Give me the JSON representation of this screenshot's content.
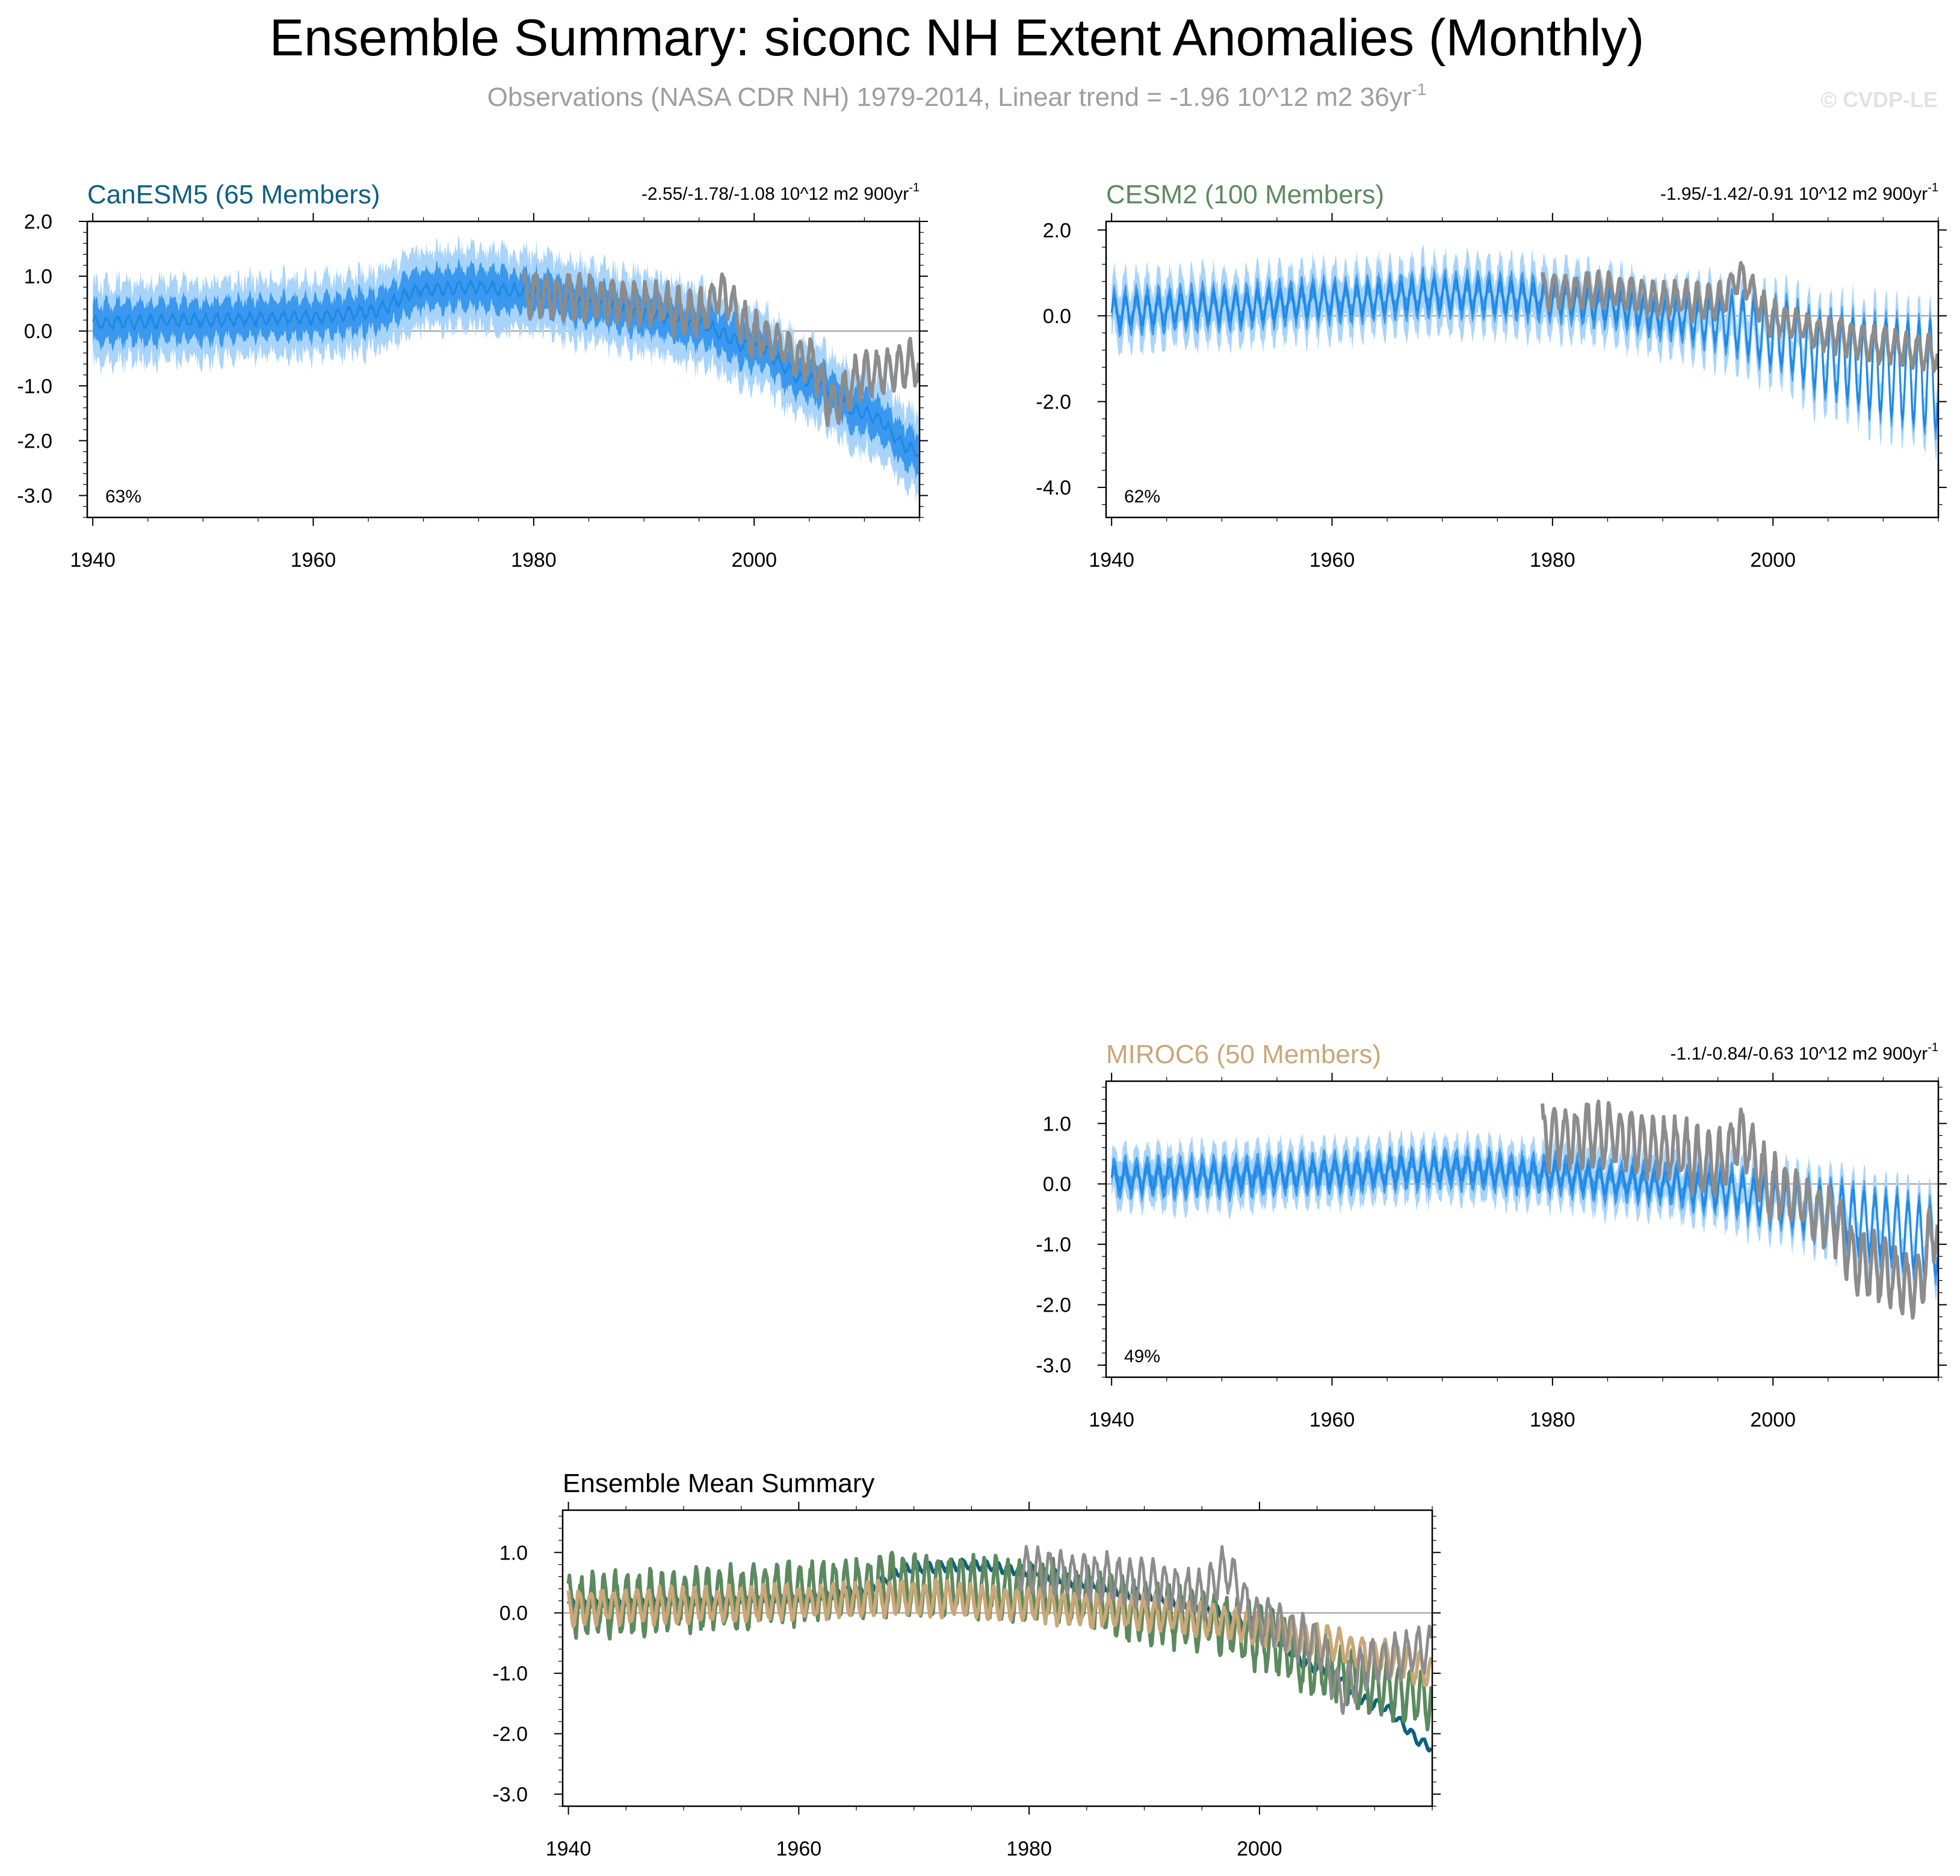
{
  "title": "Ensemble Summary: siconc NH Extent Anomalies (Monthly)",
  "subtitle": {
    "text": "Observations (NASA CDR NH) 1979-2014, Linear trend = -1.96 10^12 m2 36yr",
    "superscript": "-1"
  },
  "watermark": "© CVDP-LE",
  "colors": {
    "observations": "#8c8c8c",
    "ensemble_mean": "#1e88e5",
    "band_inner": "#3a98ee",
    "band_outer": "#a8d4fb",
    "zero_line": "#9a9a9a",
    "canesm5": "#0d6180",
    "cesm2": "#5b8a5e",
    "miroc6": "#caa777"
  },
  "panels": [
    {
      "id": "canesm5",
      "title": "CanESM5 (65 Members)",
      "trend_text": "-2.55/-1.78/-1.08 10^12 m2 900yr",
      "trend_sup": "-1",
      "percent": "63%",
      "title_color": "#0d6180",
      "ylim": [
        -3.4,
        2.0
      ],
      "yticks": [
        2.0,
        1.0,
        0.0,
        -1.0,
        -2.0,
        -3.0
      ],
      "ytick_labels": [
        "2.0",
        "1.0",
        "0.0",
        "-1.0",
        "-2.0",
        "-3.0"
      ],
      "xlim": [
        1939.5,
        2015
      ],
      "xticks": [
        1940,
        1960,
        1980,
        2000
      ],
      "xtick_labels": [
        "1940",
        "1960",
        "1980",
        "2000"
      ]
    },
    {
      "id": "cesm2",
      "title": "CESM2 (100 Members)",
      "trend_text": "-1.95/-1.42/-0.91 10^12 m2 900yr",
      "trend_sup": "-1",
      "percent": "62%",
      "title_color": "#5b8a5e",
      "ylim": [
        -4.7,
        2.2
      ],
      "yticks": [
        2.0,
        0.0,
        -2.0,
        -4.0
      ],
      "ytick_labels": [
        "2.0",
        "0.0",
        "-2.0",
        "-4.0"
      ],
      "xlim": [
        1939.5,
        2015
      ],
      "xticks": [
        1940,
        1960,
        1980,
        2000
      ],
      "xtick_labels": [
        "1940",
        "1960",
        "1980",
        "2000"
      ]
    },
    {
      "id": "miroc6",
      "title": "MIROC6 (50 Members)",
      "trend_text": "-1.1/-0.84/-0.63 10^12 m2 900yr",
      "trend_sup": "-1",
      "percent": "49%",
      "title_color": "#caa777",
      "ylim": [
        -3.2,
        1.7
      ],
      "yticks": [
        1.0,
        0.0,
        -1.0,
        -2.0,
        -3.0
      ],
      "ytick_labels": [
        "1.0",
        "0.0",
        "-1.0",
        "-2.0",
        "-3.0"
      ],
      "xlim": [
        1939.5,
        2015
      ],
      "xticks": [
        1940,
        1960,
        1980,
        2000
      ],
      "xtick_labels": [
        "1940",
        "1960",
        "1980",
        "2000"
      ]
    },
    {
      "id": "summary",
      "title": "Ensemble Mean Summary",
      "trend_text": "",
      "trend_sup": "",
      "percent": "",
      "title_color": "#000000",
      "ylim": [
        -3.2,
        1.7
      ],
      "yticks": [
        1.0,
        0.0,
        -1.0,
        -2.0,
        -3.0
      ],
      "ytick_labels": [
        "1.0",
        "0.0",
        "-1.0",
        "-2.0",
        "-3.0"
      ],
      "xlim": [
        1939.5,
        2015
      ],
      "xticks": [
        1940,
        1960,
        1980,
        2000
      ],
      "xtick_labels": [
        "1940",
        "1960",
        "1980",
        "2000"
      ]
    }
  ],
  "chart_data": [
    {
      "type": "line",
      "panel": "canesm5",
      "title": "CanESM5 (65 Members)",
      "xlabel": "",
      "ylabel": "",
      "xlim": [
        1939.5,
        2015
      ],
      "ylim": [
        -3.4,
        2.0
      ],
      "ensemble_mean_anchors": {
        "x": [
          1940,
          1950,
          1960,
          1965,
          1970,
          1975,
          1980,
          1985,
          1990,
          1995,
          2000,
          2005,
          2010,
          2014.9
        ],
        "y": [
          0.15,
          0.2,
          0.25,
          0.35,
          0.75,
          0.8,
          0.7,
          0.5,
          0.3,
          0.1,
          -0.3,
          -0.9,
          -1.5,
          -2.2
        ]
      },
      "seasonal_amplitude": 0.1,
      "band_inner_halfwidth": 0.35,
      "band_outer_halfwidth": 0.7,
      "observations_anchors": {
        "x": [
          1979,
          1985,
          1990,
          1995,
          1997,
          2000,
          2005,
          2007,
          2010,
          2014.9
        ],
        "y": [
          0.7,
          0.6,
          0.5,
          0.3,
          0.7,
          -0.1,
          -0.5,
          -1.3,
          -0.8,
          -0.6
        ]
      },
      "observations_seasonal_amplitude": 0.35
    },
    {
      "type": "line",
      "panel": "cesm2",
      "title": "CESM2 (100 Members)",
      "xlabel": "",
      "ylabel": "",
      "xlim": [
        1939.5,
        2015
      ],
      "ylim": [
        -4.7,
        2.2
      ],
      "ensemble_mean_anchors": {
        "x": [
          1940,
          1950,
          1960,
          1970,
          1980,
          1985,
          1990,
          1995,
          2000,
          2005,
          2010,
          2014.9
        ],
        "y": [
          0.1,
          0.2,
          0.35,
          0.5,
          0.4,
          0.25,
          0.0,
          -0.1,
          -0.4,
          -0.9,
          -1.2,
          -1.4
        ]
      },
      "seasonal_amplitude_start": 0.35,
      "seasonal_amplitude_end": 1.3,
      "band_inner_halfwidth": 0.25,
      "band_outer_halfwidth": 0.65,
      "observations_anchors": {
        "x": [
          1979,
          1985,
          1990,
          1995,
          1997,
          2000,
          2005,
          2010,
          2014.9
        ],
        "y": [
          0.6,
          0.6,
          0.4,
          0.3,
          0.9,
          -0.1,
          -0.4,
          -0.7,
          -0.9
        ]
      },
      "observations_seasonal_amplitude": 0.35
    },
    {
      "type": "line",
      "panel": "miroc6",
      "title": "MIROC6 (50 Members)",
      "xlabel": "",
      "ylabel": "",
      "xlim": [
        1939.5,
        2015
      ],
      "ylim": [
        -3.2,
        1.7
      ],
      "ensemble_mean_anchors": {
        "x": [
          1940,
          1950,
          1960,
          1970,
          1980,
          1985,
          1990,
          1995,
          2000,
          2005,
          2010,
          2014.9
        ],
        "y": [
          0.1,
          0.12,
          0.18,
          0.25,
          0.15,
          0.05,
          0.0,
          -0.1,
          -0.25,
          -0.45,
          -0.7,
          -0.95
        ]
      },
      "seasonal_amplitude_start": 0.2,
      "seasonal_amplitude_end": 0.6,
      "band_inner_halfwidth": 0.18,
      "band_outer_halfwidth": 0.4,
      "observations_anchors": {
        "x": [
          1979,
          1985,
          1990,
          1995,
          1997,
          2000,
          2005,
          2008,
          2013,
          2014.9
        ],
        "y": [
          0.8,
          0.8,
          0.6,
          0.3,
          0.8,
          -0.1,
          -0.5,
          -1.3,
          -1.7,
          -0.7
        ]
      },
      "observations_seasonal_amplitude": 0.45
    },
    {
      "type": "line",
      "panel": "summary",
      "title": "Ensemble Mean Summary",
      "xlabel": "",
      "ylabel": "",
      "xlim": [
        1939.5,
        2015
      ],
      "ylim": [
        -3.2,
        1.7
      ],
      "series": [
        {
          "name": "CanESM5",
          "color": "#0d6180",
          "anchors_x": [
            1940,
            1950,
            1960,
            1965,
            1970,
            1975,
            1980,
            1985,
            1990,
            1995,
            2000,
            2005,
            2010,
            2014.9
          ],
          "anchors_y": [
            0.15,
            0.2,
            0.25,
            0.35,
            0.75,
            0.8,
            0.7,
            0.5,
            0.3,
            0.1,
            -0.3,
            -0.9,
            -1.5,
            -2.2
          ],
          "seasonal_amplitude": 0.08
        },
        {
          "name": "CESM2",
          "color": "#5b8a5e",
          "anchors_x": [
            1940,
            1950,
            1960,
            1970,
            1980,
            1985,
            1990,
            1995,
            2000,
            2005,
            2010,
            2014.9
          ],
          "anchors_y": [
            0.1,
            0.2,
            0.35,
            0.5,
            0.4,
            0.25,
            0.0,
            -0.1,
            -0.4,
            -0.9,
            -1.2,
            -1.4
          ],
          "seasonal_amplitude": 0.45
        },
        {
          "name": "MIROC6",
          "color": "#caa777",
          "anchors_x": [
            1940,
            1950,
            1960,
            1970,
            1980,
            1985,
            1990,
            1995,
            2000,
            2005,
            2010,
            2014.9
          ],
          "anchors_y": [
            0.1,
            0.12,
            0.18,
            0.25,
            0.15,
            0.05,
            0.0,
            -0.1,
            -0.25,
            -0.45,
            -0.7,
            -0.95
          ],
          "seasonal_amplitude": 0.25
        },
        {
          "name": "Observations",
          "color": "#8c8c8c",
          "anchors_x": [
            1979,
            1985,
            1990,
            1995,
            1997,
            2000,
            2005,
            2007,
            2010,
            2014.9
          ],
          "anchors_y": [
            0.7,
            0.6,
            0.5,
            0.3,
            0.7,
            -0.1,
            -0.5,
            -1.3,
            -0.8,
            -0.6
          ],
          "seasonal_amplitude": 0.35
        }
      ]
    }
  ]
}
